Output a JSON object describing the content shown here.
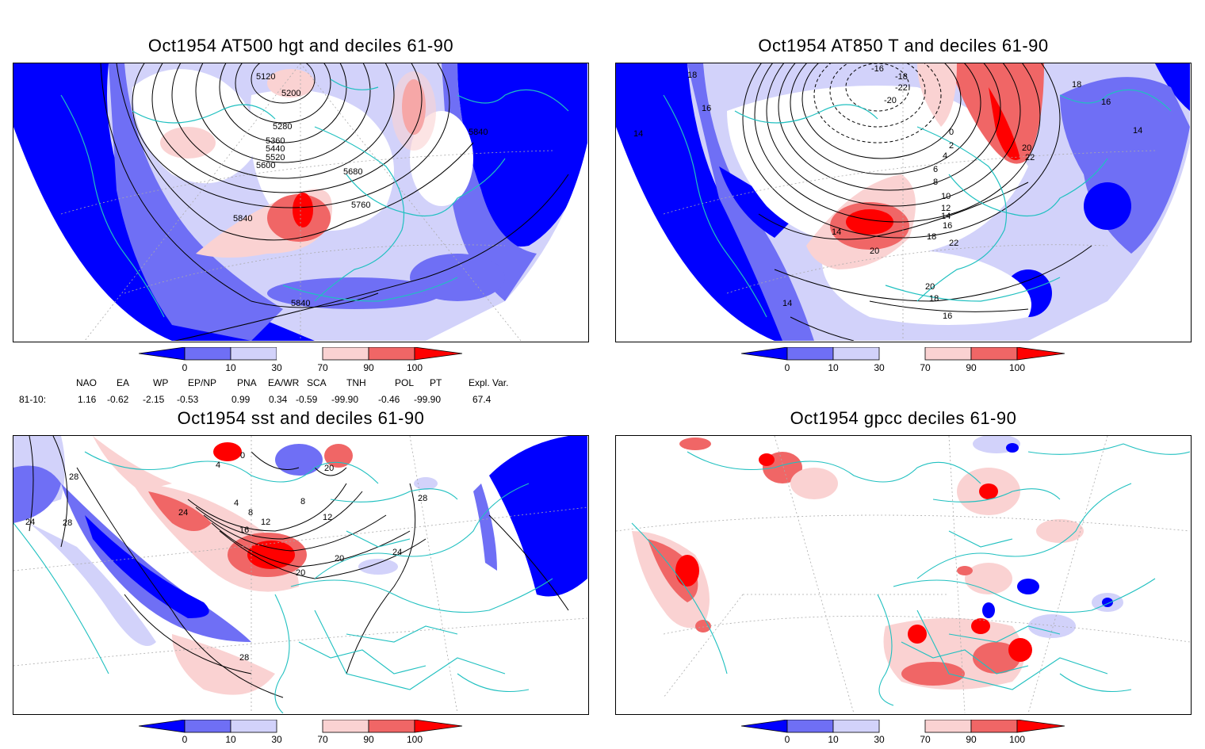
{
  "panels": [
    {
      "id": "p1",
      "title": "Oct1954 AT500 hgt and deciles 61-90",
      "contour_labels": [
        "5120",
        "5200",
        "5280",
        "5360",
        "5440",
        "5520",
        "5600",
        "5680",
        "5760",
        "5840",
        "5840",
        "5840"
      ]
    },
    {
      "id": "p2",
      "title": "Oct1954 AT850 T and deciles 61-90",
      "contour_labels": [
        "18",
        "16",
        "14",
        "-16",
        "-18",
        "-22",
        "-20",
        "0",
        "2",
        "4",
        "6",
        "8",
        "10",
        "12",
        "14",
        "16",
        "18",
        "20",
        "22",
        "18",
        "16",
        "14",
        "20",
        "22",
        "20",
        "18",
        "16",
        "14",
        "14"
      ]
    },
    {
      "id": "p3",
      "title": "Oct1954 sst and deciles 61-90",
      "contour_labels": [
        "28",
        "24",
        "28",
        "28",
        "24",
        "4",
        "8",
        "12",
        "16",
        "20",
        "20",
        "24",
        "28",
        "0",
        "4",
        "8",
        "12",
        "20"
      ]
    },
    {
      "id": "p4",
      "title": "Oct1954 gpcc deciles 61-90",
      "contour_labels": []
    }
  ],
  "colorbar": {
    "ticks": [
      "0",
      "10",
      "30",
      "70",
      "90",
      "100"
    ],
    "colors": [
      "#0000ff",
      "#6f6ff5",
      "#d2d2fa",
      "#ffffff",
      "#fad2d2",
      "#f06666",
      "#ff0000"
    ]
  },
  "indices": {
    "headers": [
      "NAO",
      "EA",
      "WP",
      "EP/NP",
      "PNA",
      "EA/WR",
      "SCA",
      "TNH",
      "POL",
      "PT",
      "Expl. Var."
    ],
    "row_label": "81-10:",
    "values": [
      "1.16",
      "-0.62",
      "-2.15",
      "-0.53",
      "0.99",
      "0.34",
      "-0.59",
      "-99.90",
      "-0.46",
      "-99.90",
      "67.4"
    ]
  }
}
